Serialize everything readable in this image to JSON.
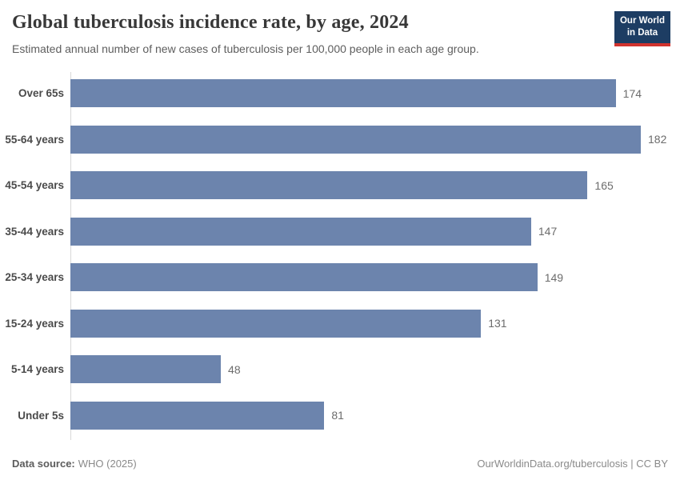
{
  "header": {
    "title": "Global tuberculosis incidence rate, by age, 2024",
    "subtitle": "Estimated annual number of new cases of tuberculosis per 100,000 people in each age group.",
    "logo": {
      "line1": "Our World",
      "line2": "in Data"
    }
  },
  "chart_data": {
    "type": "bar",
    "orientation": "horizontal",
    "title": "Global tuberculosis incidence rate, by age, 2024",
    "categories": [
      "Over 65s",
      "55-64 years",
      "45-54 years",
      "35-44 years",
      "25-34 years",
      "15-24 years",
      "5-14 years",
      "Under 5s"
    ],
    "values": [
      174,
      182,
      165,
      147,
      149,
      131,
      48,
      81
    ],
    "xlabel": "",
    "ylabel": "",
    "xlim": [
      0,
      190
    ],
    "x_axis_shown": false,
    "grid": false,
    "value_labels_shown": true,
    "bar_color": "#6c84ad"
  },
  "footer": {
    "datasource_label": "Data source:",
    "datasource_value": "WHO (2025)",
    "attribution": "OurWorldinData.org/tuberculosis | CC BY"
  },
  "colors": {
    "bar": "#6c84ad",
    "logo_background": "#1d3d63",
    "logo_accent": "#d1332e",
    "axis_line": "#d9d9d9"
  }
}
